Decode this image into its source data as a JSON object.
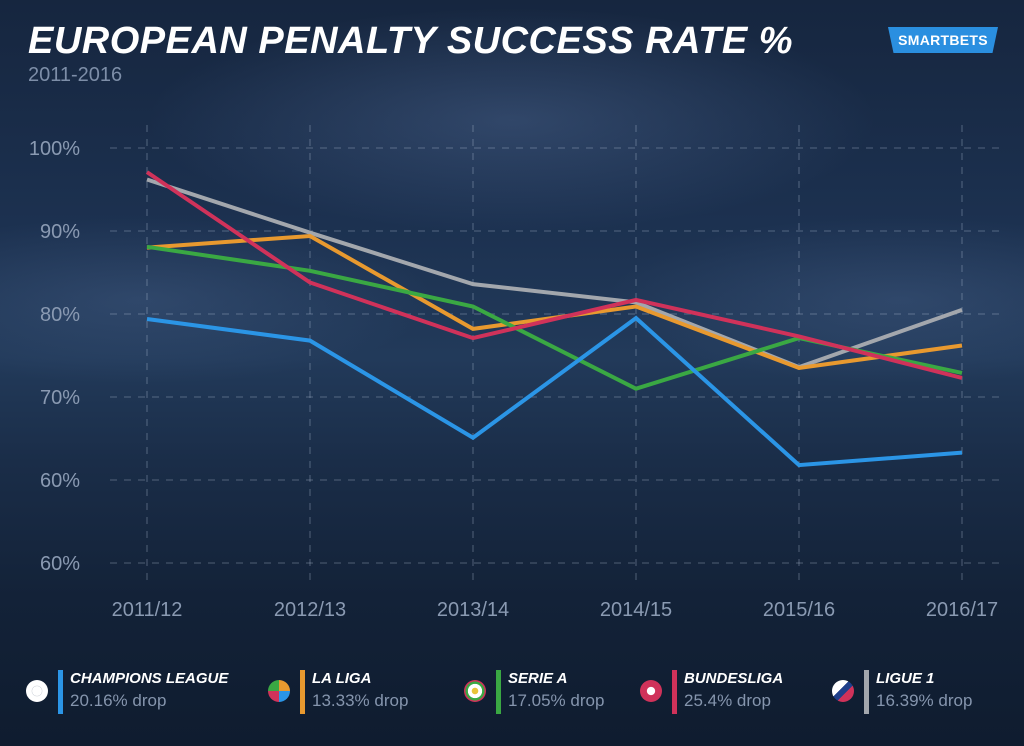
{
  "header": {
    "title": "EUROPEAN PENALTY SUCCESS RATE %",
    "subtitle": "2011-2016",
    "brand": "SMARTBETS"
  },
  "chart_data": {
    "type": "line",
    "title": "EUROPEAN PENALTY SUCCESS RATE %",
    "subtitle": "2011-2016",
    "categories": [
      "2011/12",
      "2012/13",
      "2013/14",
      "2014/15",
      "2015/16",
      "2016/17"
    ],
    "y_ticks": [
      60,
      70,
      80,
      90,
      100
    ],
    "y_tick_labels": [
      "60%",
      "70%",
      "80%",
      "90%",
      "100%"
    ],
    "extra_bottom_tick_label": "60%",
    "ylim": [
      50,
      100
    ],
    "grid": true,
    "legend": "bottom",
    "series": [
      {
        "name": "LIGUE 1",
        "note": "16.39% drop",
        "color": "#a3a7ad",
        "icon": "ligue-1-icon",
        "values": [
          96.2,
          89.8,
          83.6,
          81.4,
          73.6,
          80.5
        ]
      },
      {
        "name": "LA LIGA",
        "note": "13.33% drop",
        "color": "#e8992f",
        "icon": "la-liga-icon",
        "values": [
          88.0,
          89.4,
          78.2,
          80.9,
          73.5,
          76.2
        ]
      },
      {
        "name": "SERIE A",
        "note": "17.05% drop",
        "color": "#3aa843",
        "icon": "serie-a-icon",
        "values": [
          88.1,
          85.2,
          80.9,
          71.0,
          77.1,
          72.9
        ]
      },
      {
        "name": "BUNDESLIGA",
        "note": "25.4% drop",
        "color": "#d0325a",
        "icon": "bundesliga-icon",
        "values": [
          97.1,
          83.8,
          77.1,
          81.7,
          77.3,
          72.3
        ]
      },
      {
        "name": "CHAMPIONS LEAGUE",
        "note": "20.16% drop",
        "color": "#2b95e6",
        "icon": "champions-league-icon",
        "values": [
          79.4,
          76.8,
          65.1,
          79.5,
          61.8,
          63.3
        ]
      }
    ]
  }
}
